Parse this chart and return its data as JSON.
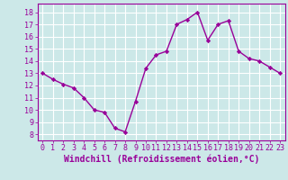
{
  "x": [
    0,
    1,
    2,
    3,
    4,
    5,
    6,
    7,
    8,
    9,
    10,
    11,
    12,
    13,
    14,
    15,
    16,
    17,
    18,
    19,
    20,
    21,
    22,
    23
  ],
  "y": [
    13.0,
    12.5,
    12.1,
    11.8,
    11.0,
    10.0,
    9.8,
    8.5,
    8.2,
    10.7,
    13.4,
    14.5,
    14.8,
    17.0,
    17.4,
    18.0,
    15.7,
    17.0,
    17.3,
    14.8,
    14.2,
    14.0,
    13.5,
    13.0
  ],
  "line_color": "#990099",
  "marker": "D",
  "markersize": 2.2,
  "linewidth": 1.0,
  "xlabel": "Windchill (Refroidissement éolien,°C)",
  "xlabel_fontsize": 7,
  "ylabel_ticks": [
    8,
    9,
    10,
    11,
    12,
    13,
    14,
    15,
    16,
    17,
    18
  ],
  "xtick_labels": [
    "0",
    "1",
    "2",
    "3",
    "4",
    "5",
    "6",
    "7",
    "8",
    "9",
    "10",
    "11",
    "12",
    "13",
    "14",
    "15",
    "16",
    "17",
    "18",
    "19",
    "20",
    "21",
    "22",
    "23"
  ],
  "ylim": [
    7.5,
    18.7
  ],
  "xlim": [
    -0.5,
    23.5
  ],
  "bg_color": "#cce8e8",
  "grid_color": "#b0d8d8",
  "tick_color": "#990099",
  "label_color": "#990099",
  "tick_fontsize": 6.0,
  "xlabel_fontweight": "bold"
}
